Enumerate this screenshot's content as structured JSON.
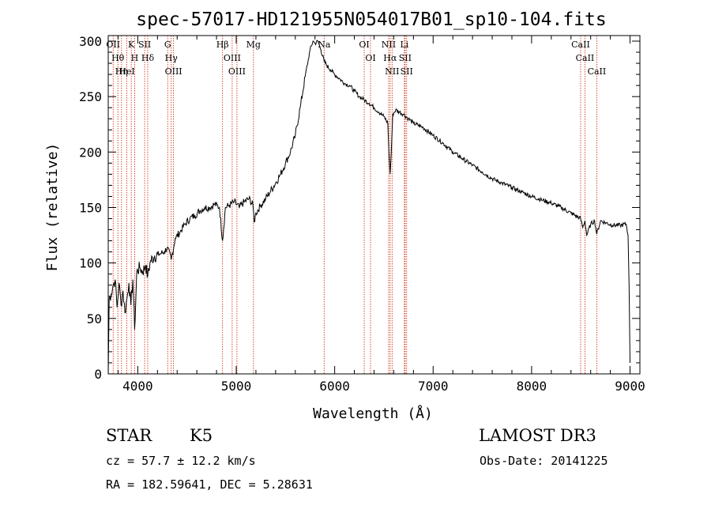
{
  "chart_data": {
    "type": "line",
    "title": "spec-57017-HD121955N054017B01_sp10-104.fits",
    "xlabel": "Wavelength (Å)",
    "ylabel": "Flux (relative)",
    "xlim": [
      3700,
      9100
    ],
    "ylim": [
      0,
      305
    ],
    "xticks": [
      4000,
      5000,
      6000,
      7000,
      8000,
      9000
    ],
    "xtick_labels": [
      "4000",
      "5000",
      "6000",
      "7000",
      "8000",
      "9000"
    ],
    "yticks": [
      0,
      50,
      100,
      150,
      200,
      250,
      300
    ],
    "ytick_labels": [
      "0",
      "50",
      "100",
      "150",
      "200",
      "250",
      "300"
    ],
    "series": [
      {
        "name": "flux",
        "x": [
          3700,
          3710,
          3730,
          3750,
          3770,
          3790,
          3810,
          3830,
          3850,
          3870,
          3890,
          3910,
          3930,
          3950,
          3968,
          3990,
          4020,
          4050,
          4080,
          4101,
          4130,
          4170,
          4220,
          4270,
          4300,
          4340,
          4380,
          4430,
          4480,
          4530,
          4580,
          4630,
          4680,
          4730,
          4780,
          4830,
          4861,
          4890,
          4930,
          4980,
          5030,
          5080,
          5130,
          5170,
          5183,
          5200,
          5250,
          5300,
          5350,
          5400,
          5450,
          5500,
          5550,
          5600,
          5650,
          5700,
          5750,
          5780,
          5800,
          5830,
          5860,
          5893,
          5920,
          5960,
          6000,
          6050,
          6100,
          6150,
          6200,
          6250,
          6300,
          6350,
          6400,
          6450,
          6500,
          6540,
          6550,
          6563,
          6575,
          6590,
          6620,
          6660,
          6700,
          6750,
          6800,
          6900,
          7000,
          7100,
          7200,
          7300,
          7400,
          7500,
          7600,
          7700,
          7800,
          7900,
          8000,
          8100,
          8200,
          8300,
          8400,
          8498,
          8520,
          8542,
          8560,
          8600,
          8640,
          8662,
          8700,
          8760,
          8820,
          8900,
          8960,
          8980,
          8990,
          9000
        ],
        "y": [
          0,
          68,
          72,
          80,
          85,
          60,
          82,
          62,
          75,
          55,
          68,
          82,
          62,
          85,
          40,
          92,
          96,
          92,
          98,
          88,
          102,
          106,
          108,
          110,
          114,
          103,
          122,
          128,
          135,
          140,
          143,
          147,
          150,
          150,
          153,
          150,
          120,
          150,
          152,
          155,
          150,
          155,
          158,
          152,
          137,
          145,
          152,
          158,
          165,
          172,
          180,
          190,
          200,
          215,
          240,
          268,
          292,
          300,
          298,
          300,
          292,
          282,
          278,
          274,
          270,
          266,
          262,
          260,
          255,
          250,
          247,
          244,
          240,
          236,
          232,
          226,
          200,
          180,
          200,
          234,
          238,
          236,
          234,
          230,
          226,
          222,
          215,
          208,
          200,
          194,
          188,
          182,
          176,
          172,
          168,
          164,
          160,
          157,
          154,
          150,
          145,
          140,
          132,
          138,
          125,
          135,
          138,
          126,
          138,
          136,
          134,
          134,
          135,
          125,
          80,
          10
        ]
      }
    ],
    "lines": [
      {
        "x": 3750,
        "label": "OII"
      },
      {
        "x": 3798,
        "label": "Hθ"
      },
      {
        "x": 3835,
        "label": "Hη"
      },
      {
        "x": 3889,
        "label": "HeI"
      },
      {
        "x": 3934,
        "label": "K"
      },
      {
        "x": 3968,
        "label": "H"
      },
      {
        "x": 4070,
        "label": "SII"
      },
      {
        "x": 4101,
        "label": "Hδ"
      },
      {
        "x": 4304,
        "label": "G"
      },
      {
        "x": 4340,
        "label": "Hγ"
      },
      {
        "x": 4363,
        "label": "OIII"
      },
      {
        "x": 4861,
        "label": "Hβ"
      },
      {
        "x": 4959,
        "label": "OIII"
      },
      {
        "x": 5007,
        "label": "OIII"
      },
      {
        "x": 5175,
        "label": "Mg"
      },
      {
        "x": 5893,
        "label": "Na"
      },
      {
        "x": 6300,
        "label": "OI"
      },
      {
        "x": 6364,
        "label": "OI"
      },
      {
        "x": 6548,
        "label": "NII"
      },
      {
        "x": 6563,
        "label": "Hα"
      },
      {
        "x": 6583,
        "label": "NII"
      },
      {
        "x": 6708,
        "label": "Li"
      },
      {
        "x": 6716,
        "label": "SII"
      },
      {
        "x": 6731,
        "label": "SII"
      },
      {
        "x": 8498,
        "label": "CaII"
      },
      {
        "x": 8542,
        "label": "CaII"
      },
      {
        "x": 8662,
        "label": "CaII"
      }
    ]
  },
  "info": {
    "class_label": "STAR",
    "subclass": "K5",
    "survey": "LAMOST DR3",
    "redshift_text": "cz = 57.7 ± 12.2 km/s",
    "obs_date_text": "Obs-Date: 20141225",
    "coords_text": "RA = 182.59641, DEC =   5.28631"
  },
  "colors": {
    "spectrum": "#000000",
    "line_markers": "#cc2200",
    "axis": "#000000",
    "background": "#ffffff"
  }
}
